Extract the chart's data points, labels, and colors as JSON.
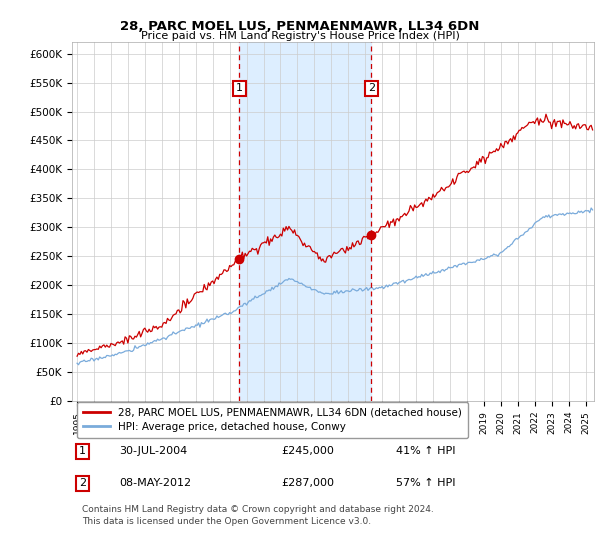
{
  "title": "28, PARC MOEL LUS, PENMAENMAWR, LL34 6DN",
  "subtitle": "Price paid vs. HM Land Registry's House Price Index (HPI)",
  "ylim": [
    0,
    600000
  ],
  "xlim_start": 1994.7,
  "xlim_end": 2025.5,
  "marker1_x": 2004.58,
  "marker1_y": 245000,
  "marker1_label": "30-JUL-2004",
  "marker1_price": "£245,000",
  "marker1_hpi": "41% ↑ HPI",
  "marker2_x": 2012.37,
  "marker2_y": 287000,
  "marker2_label": "08-MAY-2012",
  "marker2_price": "£287,000",
  "marker2_hpi": "57% ↑ HPI",
  "legend_line1": "28, PARC MOEL LUS, PENMAENMAWR, LL34 6DN (detached house)",
  "legend_line2": "HPI: Average price, detached house, Conwy",
  "footnote": "Contains HM Land Registry data © Crown copyright and database right 2024.\nThis data is licensed under the Open Government Licence v3.0.",
  "line_color_red": "#cc0000",
  "line_color_blue": "#7aabdb",
  "shade_color": "#ddeeff",
  "background_color": "#ffffff",
  "grid_color": "#cccccc"
}
